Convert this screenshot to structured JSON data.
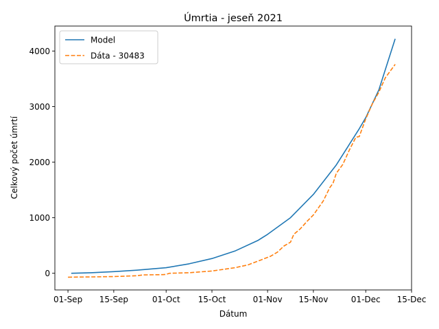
{
  "chart_data": {
    "type": "line",
    "title": "Úmrtia - jeseň 2021",
    "xlabel": "Dátum",
    "ylabel": "Celkový počet úmrtí",
    "xlim": [
      "2021-08-28",
      "2021-12-15"
    ],
    "ylim": [
      -300,
      4450
    ],
    "x_ticks": [
      {
        "date": "2021-09-01",
        "label": "01-Sep"
      },
      {
        "date": "2021-09-15",
        "label": "15-Sep"
      },
      {
        "date": "2021-10-01",
        "label": "01-Oct"
      },
      {
        "date": "2021-10-15",
        "label": "15-Oct"
      },
      {
        "date": "2021-11-01",
        "label": "01-Nov"
      },
      {
        "date": "2021-11-15",
        "label": "15-Nov"
      },
      {
        "date": "2021-12-01",
        "label": "01-Dec"
      },
      {
        "date": "2021-12-15",
        "label": "15-Dec"
      }
    ],
    "y_ticks": [
      0,
      1000,
      2000,
      3000,
      4000
    ],
    "legend_position": "top-left",
    "grid": false,
    "series": [
      {
        "name": "Model",
        "color": "#1f77b4",
        "style": "solid",
        "points": [
          {
            "x": "2021-09-02",
            "y": 0
          },
          {
            "x": "2021-09-08",
            "y": 10
          },
          {
            "x": "2021-09-15",
            "y": 30
          },
          {
            "x": "2021-09-22",
            "y": 55
          },
          {
            "x": "2021-10-01",
            "y": 100
          },
          {
            "x": "2021-10-08",
            "y": 170
          },
          {
            "x": "2021-10-15",
            "y": 265
          },
          {
            "x": "2021-10-22",
            "y": 400
          },
          {
            "x": "2021-10-29",
            "y": 590
          },
          {
            "x": "2021-11-01",
            "y": 700
          },
          {
            "x": "2021-11-08",
            "y": 1000
          },
          {
            "x": "2021-11-15",
            "y": 1420
          },
          {
            "x": "2021-11-22",
            "y": 1950
          },
          {
            "x": "2021-11-29",
            "y": 2600
          },
          {
            "x": "2021-12-01",
            "y": 2800
          },
          {
            "x": "2021-12-05",
            "y": 3300
          },
          {
            "x": "2021-12-10",
            "y": 4220
          }
        ]
      },
      {
        "name": "Dáta - 30483",
        "color": "#ff7f0e",
        "style": "dashed",
        "points": [
          {
            "x": "2021-09-01",
            "y": -70
          },
          {
            "x": "2021-09-08",
            "y": -65
          },
          {
            "x": "2021-09-15",
            "y": -60
          },
          {
            "x": "2021-09-22",
            "y": -45
          },
          {
            "x": "2021-09-24",
            "y": -30
          },
          {
            "x": "2021-09-30",
            "y": -25
          },
          {
            "x": "2021-10-01",
            "y": -20
          },
          {
            "x": "2021-10-02",
            "y": 0
          },
          {
            "x": "2021-10-08",
            "y": 10
          },
          {
            "x": "2021-10-15",
            "y": 40
          },
          {
            "x": "2021-10-22",
            "y": 100
          },
          {
            "x": "2021-10-26",
            "y": 150
          },
          {
            "x": "2021-10-30",
            "y": 240
          },
          {
            "x": "2021-11-02",
            "y": 310
          },
          {
            "x": "2021-11-04",
            "y": 380
          },
          {
            "x": "2021-11-06",
            "y": 490
          },
          {
            "x": "2021-11-08",
            "y": 560
          },
          {
            "x": "2021-11-09",
            "y": 700
          },
          {
            "x": "2021-11-11",
            "y": 800
          },
          {
            "x": "2021-11-13",
            "y": 930
          },
          {
            "x": "2021-11-15",
            "y": 1050
          },
          {
            "x": "2021-11-18",
            "y": 1300
          },
          {
            "x": "2021-11-20",
            "y": 1540
          },
          {
            "x": "2021-11-21",
            "y": 1620
          },
          {
            "x": "2021-11-22",
            "y": 1800
          },
          {
            "x": "2021-11-24",
            "y": 1960
          },
          {
            "x": "2021-11-26",
            "y": 2220
          },
          {
            "x": "2021-11-28",
            "y": 2450
          },
          {
            "x": "2021-11-29",
            "y": 2460
          },
          {
            "x": "2021-12-01",
            "y": 2780
          },
          {
            "x": "2021-12-03",
            "y": 3050
          },
          {
            "x": "2021-12-05",
            "y": 3260
          },
          {
            "x": "2021-12-07",
            "y": 3520
          },
          {
            "x": "2021-12-10",
            "y": 3760
          }
        ]
      }
    ]
  }
}
